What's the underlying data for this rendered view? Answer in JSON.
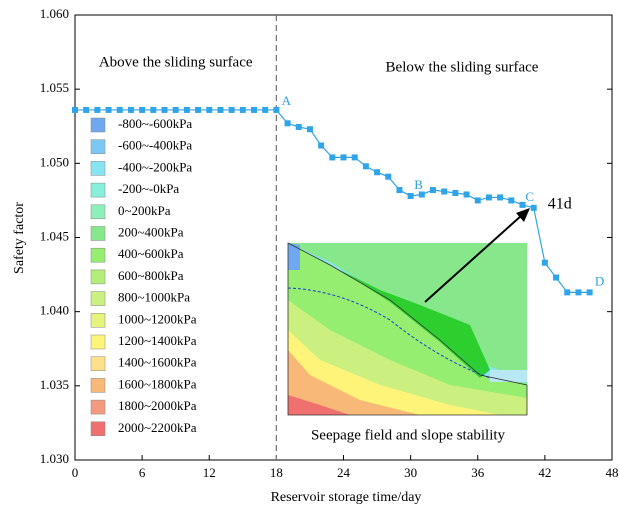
{
  "chart_data": {
    "type": "line",
    "x_label": "Reservoir storage time/day",
    "y_label": "Safety factor",
    "xlim": [
      0,
      48
    ],
    "xticks": [
      0,
      6,
      12,
      18,
      24,
      30,
      36,
      42,
      48
    ],
    "ylim": [
      1.03,
      1.06
    ],
    "yticks": [
      {
        "value": 1.03,
        "label": "1.030"
      },
      {
        "value": 1.035,
        "label": "1.035"
      },
      {
        "value": 1.04,
        "label": "1.040"
      },
      {
        "value": 1.045,
        "label": "1.045"
      },
      {
        "value": 1.05,
        "label": "1.050"
      },
      {
        "value": 1.055,
        "label": "1.055"
      },
      {
        "value": 1.06,
        "label": "1.060"
      }
    ],
    "x": [
      0,
      1,
      2,
      3,
      4,
      5,
      6,
      7,
      8,
      9,
      10,
      11,
      12,
      13,
      14,
      15,
      16,
      17,
      18,
      19,
      20,
      21,
      22,
      23,
      24,
      25,
      26,
      27,
      28,
      29,
      30,
      31,
      32,
      33,
      34,
      35,
      36,
      37,
      38,
      39,
      40,
      41,
      42,
      43,
      44,
      45,
      46
    ],
    "series": [
      {
        "color": "#2fa4e8",
        "values": [
          1.0536,
          1.0536,
          1.0536,
          1.0536,
          1.0536,
          1.0536,
          1.0536,
          1.0536,
          1.0536,
          1.0536,
          1.0536,
          1.0536,
          1.0536,
          1.0536,
          1.0536,
          1.0536,
          1.0536,
          1.0536,
          1.0536,
          1.0527,
          1.05245,
          1.0523,
          1.0512,
          1.0504,
          1.0504,
          1.0504,
          1.0498,
          1.0494,
          1.0491,
          1.0482,
          1.0478,
          1.0479,
          1.0482,
          1.0481,
          1.048,
          1.0479,
          1.0475,
          1.0477,
          1.0477,
          1.0475,
          1.0472,
          1.047,
          1.0433,
          1.0423,
          1.0413,
          1.0413,
          1.0413
        ]
      }
    ],
    "divider_x": 18,
    "region_labels": [
      "Above the sliding surface",
      "Below the sliding surface"
    ],
    "point_labels": [
      {
        "label": "A",
        "x": 18
      },
      {
        "label": "B",
        "x": 30
      },
      {
        "label": "C",
        "x": 41
      },
      {
        "label": "D",
        "x": 46
      }
    ],
    "annotation": "41d",
    "inset_caption": "Seepage field and slope stability",
    "contour_legend": [
      {
        "label": "-800~-600kPa",
        "color": "#6fa8f0"
      },
      {
        "label": "-600~-400kPa",
        "color": "#7cc8f5"
      },
      {
        "label": "-400~-200kPa",
        "color": "#86e4f3"
      },
      {
        "label": "-200~-0kPa",
        "color": "#86f0dc"
      },
      {
        "label": "0~200kPa",
        "color": "#8cf0b8"
      },
      {
        "label": "200~400kPa",
        "color": "#86e88a"
      },
      {
        "label": "400~600kPa",
        "color": "#96ee70"
      },
      {
        "label": "600~800kPa",
        "color": "#b4ee78"
      },
      {
        "label": "800~1000kPa",
        "color": "#ccf080"
      },
      {
        "label": "1000~1200kPa",
        "color": "#e6f47c"
      },
      {
        "label": "1200~1400kPa",
        "color": "#fff47a"
      },
      {
        "label": "1400~1600kPa",
        "color": "#ffe08a"
      },
      {
        "label": "1600~1800kPa",
        "color": "#f8b878"
      },
      {
        "label": "1800~2000kPa",
        "color": "#f49a80"
      },
      {
        "label": "2000~2200kPa",
        "color": "#f07070"
      }
    ]
  }
}
